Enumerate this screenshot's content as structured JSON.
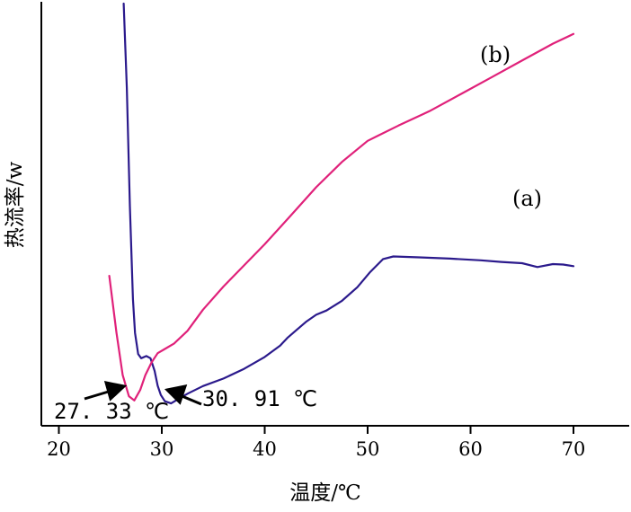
{
  "chart_data": {
    "type": "line",
    "xlabel": "温度/℃",
    "ylabel": "热流率/w",
    "xlim": [
      20,
      75
    ],
    "xticks": [
      20,
      30,
      40,
      50,
      60,
      70
    ],
    "tick_labels": [
      "20",
      "30",
      "40",
      "50",
      "60",
      "70"
    ],
    "y_ticks_shown": false,
    "series": [
      {
        "name": "(a)",
        "color": "#2b1a8c",
        "x": [
          26.3,
          26.6,
          26.9,
          27.2,
          27.4,
          27.7,
          28.0,
          28.5,
          28.9,
          29.3,
          29.6,
          29.9,
          30.3,
          30.9,
          31.5,
          32.5,
          34,
          36,
          38,
          40,
          41.5,
          42.2,
          43,
          44,
          45,
          46,
          47.5,
          49,
          50.2,
          51.5,
          52.5,
          55,
          58,
          61,
          63,
          65,
          66.5,
          68,
          69,
          70
        ],
        "y": [
          100,
          80,
          52,
          30,
          22,
          17,
          16,
          16.5,
          16,
          13,
          9.5,
          7.3,
          5.8,
          5.3,
          6.2,
          7.6,
          9.4,
          11.2,
          13.5,
          16.3,
          19,
          20.8,
          22.5,
          24.6,
          26.3,
          27.3,
          29.6,
          32.8,
          36.3,
          39.5,
          40.1,
          39.9,
          39.6,
          39.2,
          38.8,
          38.5,
          37.6,
          38.3,
          38.2,
          37.8
        ]
      },
      {
        "name": "(b)",
        "color": "#e0217a",
        "x": [
          24.9,
          25.6,
          26.2,
          26.8,
          27.33,
          27.9,
          28.4,
          29.0,
          29.6,
          30.3,
          31.2,
          32.5,
          34,
          36,
          38,
          40,
          42.5,
          45,
          47.5,
          50,
          51,
          53,
          56,
          59,
          62,
          65,
          68,
          70
        ],
        "y": [
          35.5,
          22,
          12,
          7,
          6.0,
          8.5,
          12,
          15,
          17.2,
          18.2,
          19.5,
          22.5,
          27.5,
          33,
          38,
          43,
          49.7,
          56.5,
          62.5,
          67.5,
          68.7,
          71.1,
          74.5,
          78.5,
          82.5,
          86.5,
          90.5,
          92.8
        ]
      }
    ],
    "annotations": [
      {
        "text": "27. 33 ℃",
        "x": 27.33
      },
      {
        "text": "30. 91 ℃",
        "x": 30.91
      }
    ],
    "curve_labels": [
      "(a)",
      "(b)"
    ],
    "grid": false,
    "legend": "none"
  }
}
